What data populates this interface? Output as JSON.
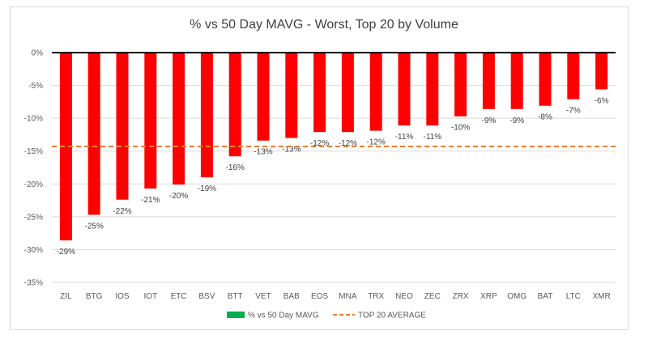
{
  "chart_data": {
    "type": "bar",
    "title": "% vs 50 Day MAVG - Worst, Top 20 by Volume",
    "categories": [
      "ZIL",
      "BTG",
      "IOS",
      "IOT",
      "ETC",
      "BSV",
      "BTT",
      "VET",
      "BAB",
      "EOS",
      "MNA",
      "TRX",
      "NEO",
      "ZEC",
      "ZRX",
      "XRP",
      "OMG",
      "BAT",
      "LTC",
      "XMR"
    ],
    "series": [
      {
        "name": "% vs 50 Day MAVG",
        "type": "bar",
        "color": "#ff0000",
        "legend_color": "#00b050",
        "values": [
          -28.6,
          -24.7,
          -22.4,
          -20.7,
          -20.1,
          -19.0,
          -15.8,
          -13.4,
          -13.0,
          -12.1,
          -12.1,
          -11.9,
          -11.1,
          -11.1,
          -9.7,
          -8.6,
          -8.6,
          -8.1,
          -7.1,
          -5.6
        ],
        "labels": [
          "-29%",
          "-25%",
          "-22%",
          "-21%",
          "-20%",
          "-19%",
          "-16%",
          "-13%",
          "-13%",
          "-12%",
          "-12%",
          "-12%",
          "-11%",
          "-11%",
          "-10%",
          "-9%",
          "-9%",
          "-8%",
          "-7%",
          "-6%"
        ]
      },
      {
        "name": "TOP 20 AVERAGE",
        "type": "line",
        "style": "dashed",
        "color": "#ed7d31",
        "value": -14.3
      }
    ],
    "ylim": [
      -35,
      0
    ],
    "yticks": [
      0,
      -5,
      -10,
      -15,
      -20,
      -25,
      -30,
      -35
    ],
    "ytick_labels": [
      "0%",
      "-5%",
      "-10%",
      "-15%",
      "-20%",
      "-25%",
      "-30%",
      "-35%"
    ],
    "grid": true,
    "legend_position": "bottom"
  }
}
